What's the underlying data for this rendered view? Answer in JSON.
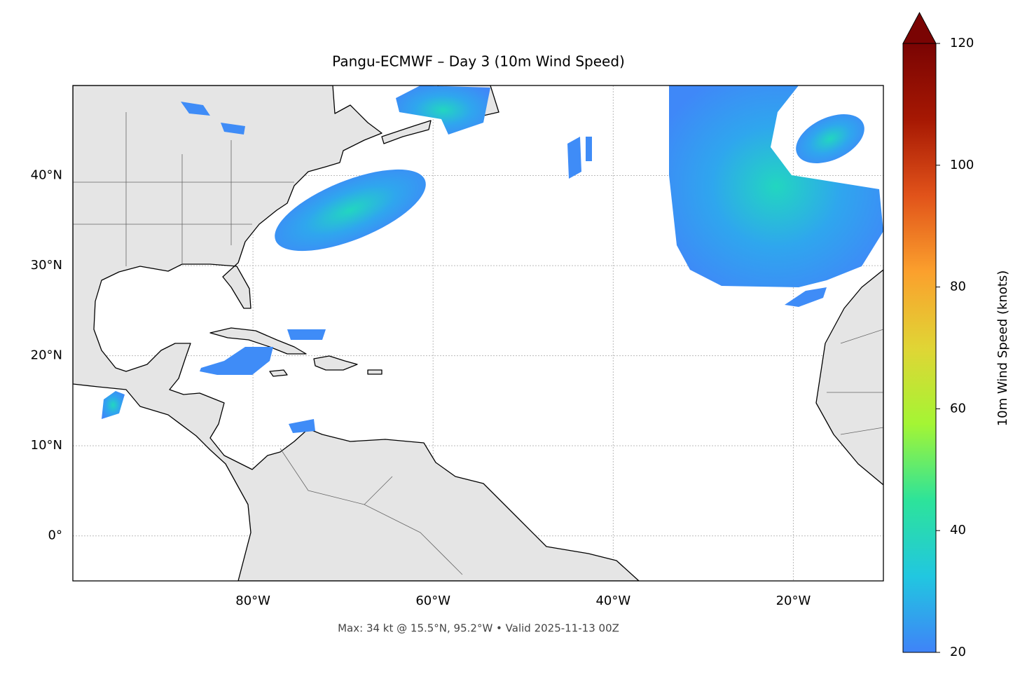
{
  "chart_data": {
    "type": "map",
    "title": "Pangu-ECMWF – Day 3 (10m Wind Speed)",
    "footer": "Max: 34 kt @ 15.5°N, 95.2°W • Valid 2025-11-13 00Z",
    "xlim": [
      -100,
      -10
    ],
    "ylim": [
      -5,
      50
    ],
    "xticks": [
      {
        "value": -80,
        "label": "80°W"
      },
      {
        "value": -60,
        "label": "60°W"
      },
      {
        "value": -40,
        "label": "40°W"
      },
      {
        "value": -20,
        "label": "20°W"
      }
    ],
    "yticks": [
      {
        "value": 0,
        "label": "0°"
      },
      {
        "value": 10,
        "label": "10°N"
      },
      {
        "value": 20,
        "label": "20°N"
      },
      {
        "value": 30,
        "label": "30°N"
      },
      {
        "value": 40,
        "label": "40°N"
      }
    ],
    "grid": true,
    "colorbar": {
      "label": "10m Wind Speed (knots)",
      "lim": [
        20,
        120
      ],
      "ticks": [
        20,
        40,
        60,
        80,
        100,
        120
      ],
      "extend": "max",
      "colors": [
        "#3f83f8",
        "#21c7e0",
        "#2de39a",
        "#a4f534",
        "#e0d535",
        "#fba02d",
        "#e1531a",
        "#a61803",
        "#7a0403"
      ]
    }
  }
}
